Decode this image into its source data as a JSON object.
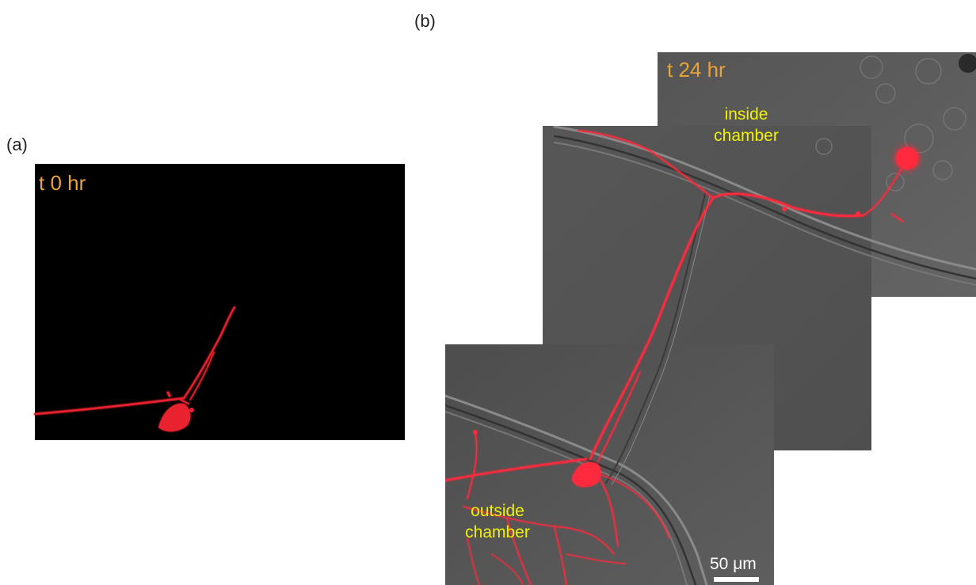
{
  "panel_a": {
    "label": "(a)",
    "time": "t 0 hr"
  },
  "panel_b": {
    "label": "(b)",
    "time": "t 24 hr",
    "inside": [
      "inside",
      "chamber"
    ],
    "outside": [
      "outside",
      "chamber"
    ],
    "scale_bar": "50 μm"
  },
  "colors": {
    "neuron": "#ff2a3c",
    "background_a": "#000000",
    "brightfield": "#5a5a5a",
    "time_label": "#e8a33a",
    "chamber_label": "#f2f200"
  }
}
